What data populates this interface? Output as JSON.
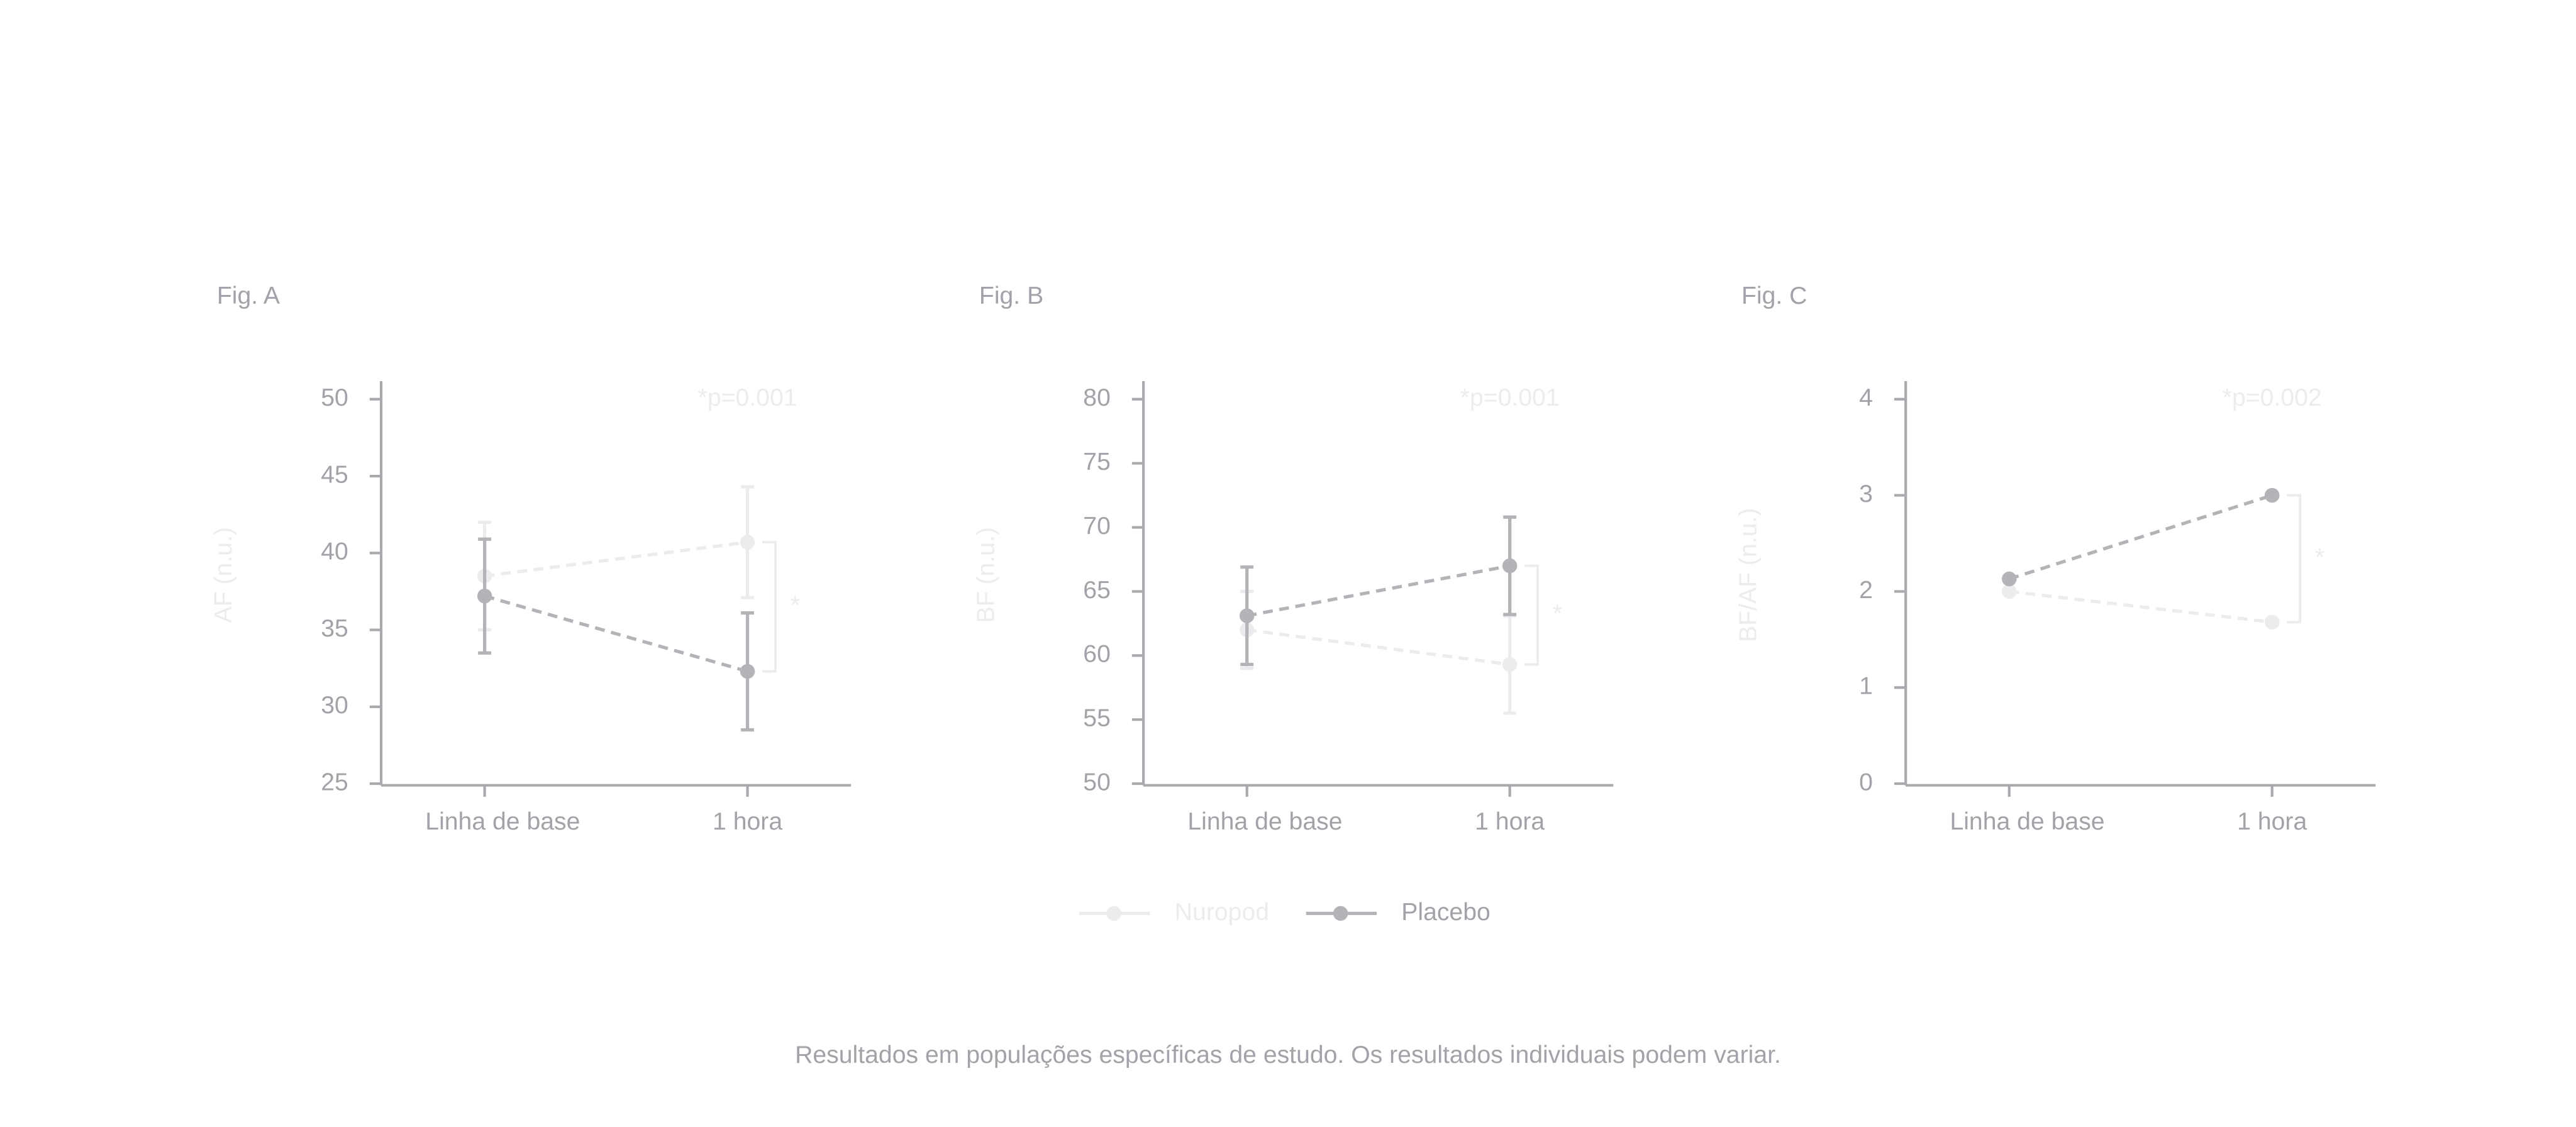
{
  "chart_data": [
    {
      "type": "line",
      "panel_label": "Fig. A",
      "ylabel": "AF (n.u.)",
      "annotation": "*p=0.001",
      "significance_marker": "*",
      "categories": [
        "Linha de base",
        "1 hora"
      ],
      "ylim": [
        25,
        50
      ],
      "yticks": [
        25,
        30,
        35,
        40,
        45,
        50
      ],
      "series": [
        {
          "name": "Nuropod",
          "color": "#ececee",
          "values": [
            38.5,
            40.7
          ],
          "errors": [
            3.5,
            3.6
          ]
        },
        {
          "name": "Placebo",
          "color": "#b3b3b8",
          "values": [
            37.2,
            32.3
          ],
          "errors": [
            3.7,
            3.8
          ]
        }
      ]
    },
    {
      "type": "line",
      "panel_label": "Fig. B",
      "ylabel": "BF (n.u.)",
      "annotation": "*p=0.001",
      "significance_marker": "*",
      "categories": [
        "Linha de base",
        "1 hora"
      ],
      "ylim": [
        50,
        80
      ],
      "yticks": [
        50,
        55,
        60,
        65,
        70,
        75,
        80
      ],
      "series": [
        {
          "name": "Nuropod",
          "color": "#ececee",
          "values": [
            62,
            59.3
          ],
          "errors": [
            3,
            3.8
          ]
        },
        {
          "name": "Placebo",
          "color": "#b3b3b8",
          "values": [
            63.1,
            67
          ],
          "errors": [
            3.8,
            3.8
          ]
        }
      ]
    },
    {
      "type": "line",
      "panel_label": "Fig. C",
      "ylabel": "BF/AF (n.u.)",
      "annotation": "*p=0.002",
      "significance_marker": "*",
      "categories": [
        "Linha de base",
        "1 hora"
      ],
      "ylim": [
        0,
        4
      ],
      "yticks": [
        0,
        1,
        2,
        3,
        4
      ],
      "series": [
        {
          "name": "Nuropod",
          "color": "#ececee",
          "values": [
            2.0,
            1.68
          ]
        },
        {
          "name": "Placebo",
          "color": "#b3b3b8",
          "values": [
            2.13,
            3.0
          ]
        }
      ]
    }
  ],
  "note": "Resultados em populações específicas de estudo. Os resultados individuais podem variar."
}
